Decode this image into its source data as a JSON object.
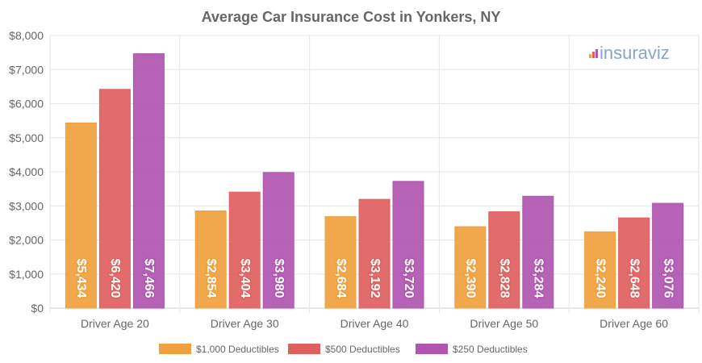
{
  "logo": {
    "text": "insuraviz"
  },
  "chart_data": {
    "type": "bar",
    "title": "Average Car Insurance Cost in Yonkers, NY",
    "xlabel": "",
    "ylabel": "",
    "ylim": [
      0,
      8000
    ],
    "yticks": [
      0,
      1000,
      2000,
      3000,
      4000,
      5000,
      6000,
      7000,
      8000
    ],
    "ytick_labels": [
      "$0",
      "$1,000",
      "$2,000",
      "$3,000",
      "$4,000",
      "$5,000",
      "$6,000",
      "$7,000",
      "$8,000"
    ],
    "categories": [
      "Driver Age 20",
      "Driver Age 30",
      "Driver Age 40",
      "Driver Age 50",
      "Driver Age 60"
    ],
    "series": [
      {
        "name": "$1,000 Deductibles",
        "color": "#f0a03c",
        "values": [
          5434,
          2854,
          2684,
          2390,
          2240
        ],
        "labels": [
          "$5,434",
          "$2,854",
          "$2,684",
          "$2,390",
          "$2,240"
        ]
      },
      {
        "name": "$500 Deductibles",
        "color": "#e06060",
        "values": [
          6420,
          3404,
          3192,
          2828,
          2648
        ],
        "labels": [
          "$6,420",
          "$3,404",
          "$3,192",
          "$2,828",
          "$2,648"
        ]
      },
      {
        "name": "$250 Deductibles",
        "color": "#b055b0",
        "values": [
          7466,
          3980,
          3720,
          3284,
          3076
        ],
        "labels": [
          "$7,466",
          "$3,980",
          "$3,720",
          "$3,284",
          "$3,076"
        ]
      }
    ],
    "grid": true,
    "legend_position": "bottom"
  }
}
